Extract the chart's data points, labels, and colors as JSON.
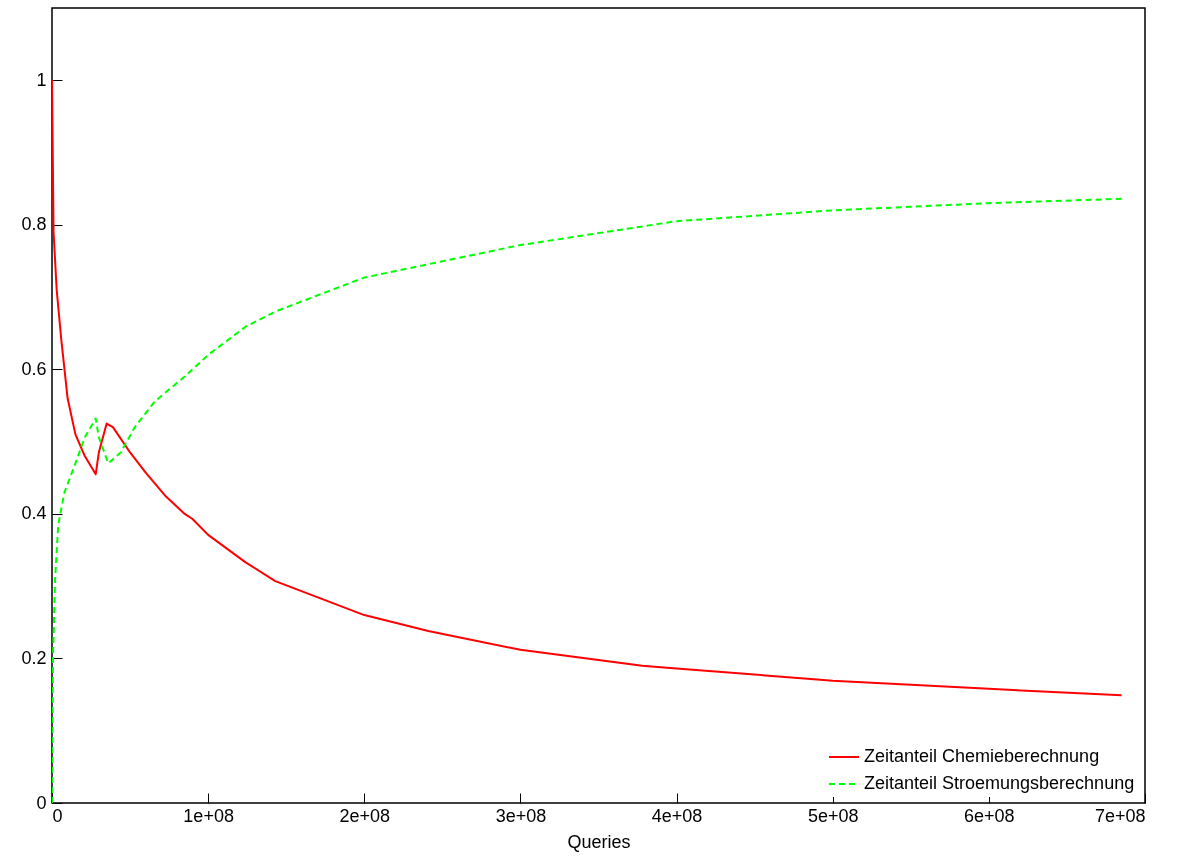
{
  "chart_data": {
    "type": "line",
    "xlabel": "Queries",
    "xlim": [
      0,
      700000000
    ],
    "ylim": [
      0,
      1.1
    ],
    "xticks": [
      0,
      {
        "value": 100000000,
        "label": "1e+08"
      },
      {
        "value": 200000000,
        "label": "2e+08"
      },
      {
        "value": 300000000,
        "label": "3e+08"
      },
      {
        "value": 400000000,
        "label": "4e+08"
      },
      {
        "value": 500000000,
        "label": "5e+08"
      },
      {
        "value": 600000000,
        "label": "6e+08"
      },
      {
        "value": 700000000,
        "label": "7e+08"
      }
    ],
    "yticks": [
      0,
      0.2,
      0.4,
      0.6,
      0.8,
      1
    ],
    "grid": false,
    "legend": "bottom right",
    "series": [
      {
        "name": "Zeitanteil Chemieberechnung",
        "color": "#ff0000",
        "line_style": "solid",
        "x": [
          0,
          1000000,
          3000000,
          6000000,
          10000000,
          15000000,
          21000000,
          28000000,
          30000000,
          35000000,
          39000000,
          50000000,
          60000000,
          73000000,
          85000000,
          90000000,
          100000000,
          124000000,
          143000000,
          200000000,
          241000000,
          300000000,
          378000000,
          400000000,
          490000000,
          500000000,
          600000000,
          685000000
        ],
        "values": [
          1.0,
          0.79,
          0.71,
          0.64,
          0.56,
          0.51,
          0.48,
          0.455,
          0.485,
          0.525,
          0.52,
          0.485,
          0.457,
          0.424,
          0.4,
          0.393,
          0.371,
          0.333,
          0.307,
          0.26,
          0.238,
          0.212,
          0.19,
          0.186,
          0.171,
          0.169,
          0.158,
          0.149
        ]
      },
      {
        "name": "Zeitanteil Stroemungsberechnung",
        "color": "#00ff00",
        "line_style": "dashed",
        "x": [
          0,
          600000,
          2000000,
          4000000,
          8000000,
          15000000,
          21000000,
          28000000,
          30000000,
          36000000,
          44000000,
          53000000,
          66000000,
          85000000,
          100000000,
          124000000,
          143000000,
          200000000,
          300000000,
          400000000,
          500000000,
          600000000,
          685000000
        ],
        "values": [
          0,
          0.2,
          0.31,
          0.385,
          0.43,
          0.47,
          0.506,
          0.532,
          0.506,
          0.47,
          0.485,
          0.52,
          0.556,
          0.59,
          0.62,
          0.659,
          0.68,
          0.727,
          0.772,
          0.805,
          0.82,
          0.83,
          0.836
        ]
      }
    ]
  }
}
